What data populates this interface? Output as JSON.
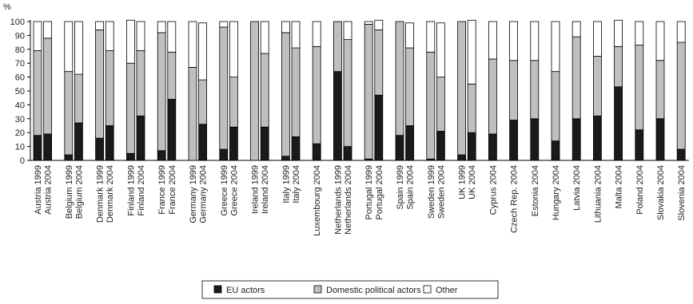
{
  "chart_data": {
    "type": "stacked_bar",
    "y_label": "%",
    "categories": [
      "Austria 1999",
      "Austria 2004",
      "Belgium 1999",
      "Belgium 2004",
      "Denmark 1999",
      "Denmark 2004",
      "Finland 1999",
      "Finland 2004",
      "France 1999",
      "France 2004",
      "Germany 1999",
      "Germany 2004",
      "Greece 1999",
      "Greece 2004",
      "Ireland 1999",
      "Ireland 2004",
      "Italy 1999",
      "Italy 2004",
      "Luxembourg 2004",
      "Netherlands 1999",
      "Netherlands 2004",
      "Portugal 1999",
      "Portugal 2004",
      "Spain 1999",
      "Spain 2004",
      "Sweden 1999",
      "Sweden 2004",
      "UK 1999",
      "UK 2004",
      "Cyprus 2004",
      "Czech Rep. 2004",
      "Estonia 2004",
      "Hungary 2004",
      "Latvia 2004",
      "Lithuania 2004",
      "Malta 2004",
      "Poland 2004",
      "Slovakia 2004",
      "Slovenia 2004"
    ],
    "series": [
      {
        "name": "EU actors",
        "color": "#1a1a1a",
        "values": [
          18,
          19,
          4,
          27,
          16,
          25,
          5,
          32,
          7,
          44,
          0,
          26,
          8,
          24,
          0,
          24,
          3,
          17,
          12,
          64,
          10,
          1,
          47,
          18,
          25,
          1,
          21,
          4,
          20,
          19,
          29,
          30,
          14,
          30,
          32,
          53,
          22,
          30,
          8
        ]
      },
      {
        "name": "Domestic political actors",
        "color": "#bfbfbf",
        "values": [
          61,
          69,
          60,
          35,
          78,
          54,
          65,
          47,
          85,
          34,
          67,
          32,
          88,
          36,
          100,
          53,
          89,
          64,
          70,
          36,
          77,
          97,
          47,
          82,
          56,
          77,
          39,
          96,
          35,
          54,
          43,
          42,
          50,
          59,
          43,
          29,
          61,
          42,
          77
        ]
      },
      {
        "name": "Other",
        "color": "#ffffff",
        "values": [
          21,
          12,
          36,
          38,
          6,
          21,
          31,
          21,
          8,
          22,
          33,
          41,
          4,
          40,
          0,
          23,
          8,
          19,
          18,
          0,
          13,
          2,
          7,
          0,
          18,
          22,
          39,
          0,
          46,
          27,
          28,
          28,
          36,
          11,
          25,
          19,
          17,
          28,
          15
        ]
      }
    ],
    "ylim": [
      0,
      100
    ],
    "yticks": [
      0,
      10,
      20,
      30,
      40,
      50,
      60,
      70,
      80,
      90,
      100
    ],
    "legend": "bottom"
  }
}
